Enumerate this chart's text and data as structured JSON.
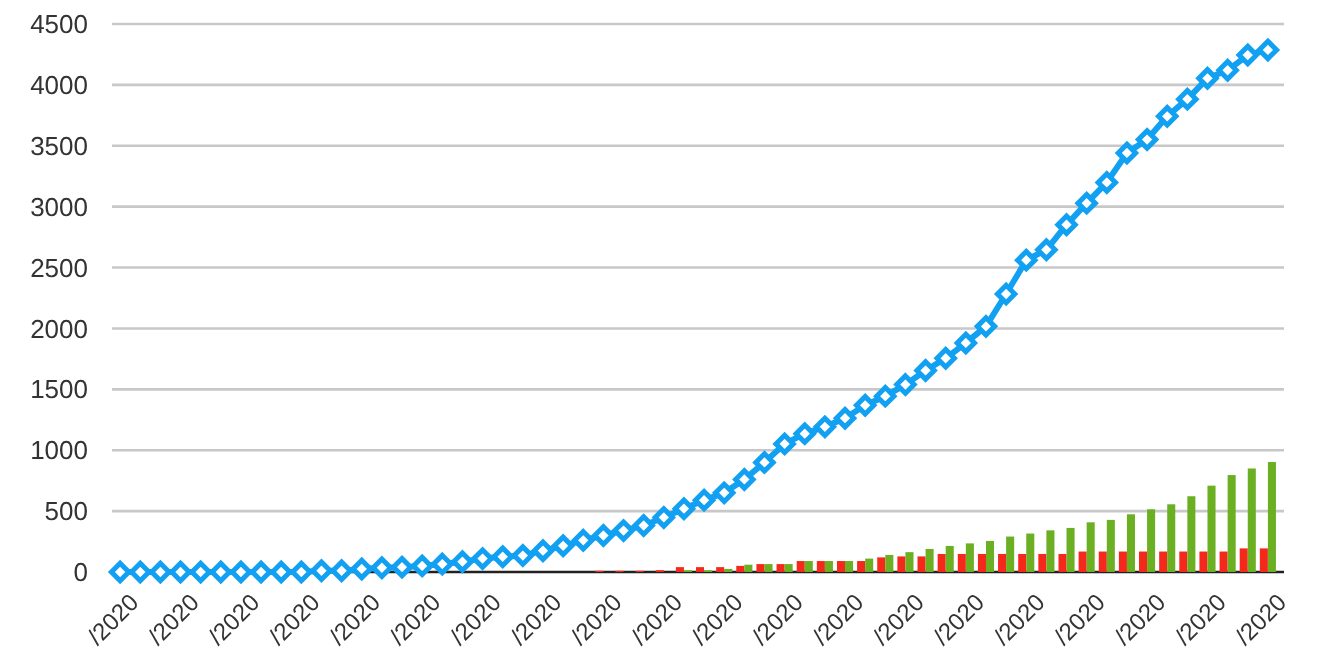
{
  "chart_data": {
    "type": "bar",
    "categories": [
      "/2020",
      null,
      null,
      "/2020",
      null,
      null,
      "/2020",
      null,
      null,
      "/2020",
      null,
      null,
      "/2020",
      null,
      null,
      "/2020",
      null,
      null,
      "/2020",
      null,
      null,
      "/2020",
      null,
      null,
      "/2020",
      null,
      null,
      "/2020",
      null,
      null,
      "/2020",
      null,
      null,
      "/2020",
      null,
      null,
      "/2020",
      null,
      null,
      "/2020",
      null,
      null,
      "/2020",
      null,
      null,
      "/2020",
      null,
      null,
      "/2020",
      null,
      null,
      "/2020",
      null,
      null,
      "/2020",
      null,
      null,
      "/2020"
    ],
    "series": [
      {
        "color": "#f5281c",
        "values": [
          null,
          null,
          null,
          null,
          null,
          null,
          null,
          null,
          null,
          null,
          null,
          null,
          null,
          null,
          null,
          null,
          null,
          null,
          null,
          null,
          null,
          null,
          null,
          null,
          10,
          10,
          10,
          15,
          40,
          40,
          40,
          50,
          65,
          65,
          90,
          90,
          90,
          90,
          120,
          128,
          128,
          148,
          148,
          148,
          148,
          148,
          148,
          148,
          168,
          168,
          168,
          168,
          168,
          168,
          168,
          168,
          194,
          194
        ]
      },
      {
        "color": "#6bb023",
        "values": [
          null,
          null,
          null,
          null,
          null,
          null,
          null,
          null,
          null,
          null,
          null,
          null,
          null,
          null,
          null,
          null,
          null,
          null,
          null,
          null,
          null,
          null,
          null,
          null,
          null,
          null,
          null,
          null,
          15,
          15,
          25,
          60,
          65,
          65,
          90,
          90,
          90,
          110,
          140,
          163,
          189,
          214,
          235,
          255,
          291,
          316,
          342,
          362,
          408,
          428,
          474,
          515,
          556,
          622,
          709,
          796,
          850,
          903
        ]
      },
      {
        "type": "line",
        "color": "#12a0f2",
        "marker": "diamond",
        "values": [
          0,
          0,
          0,
          0,
          0,
          0,
          0,
          0,
          0,
          0,
          10,
          10,
          25,
          35,
          40,
          50,
          65,
          85,
          110,
          125,
          135,
          175,
          215,
          260,
          300,
          340,
          382,
          448,
          520,
          590,
          650,
          760,
          900,
          1052,
          1136,
          1192,
          1263,
          1369,
          1444,
          1539,
          1655,
          1755,
          1881,
          2017,
          2283,
          2561,
          2646,
          2852,
          3029,
          3199,
          3441,
          3551,
          3742,
          3883,
          4054,
          4120,
          4245,
          4287
        ]
      }
    ],
    "ylim": [
      0,
      4500
    ],
    "yticks": [
      0,
      500,
      1000,
      1500,
      2000,
      2500,
      3000,
      3500,
      4000,
      4500
    ],
    "grid": "y"
  }
}
